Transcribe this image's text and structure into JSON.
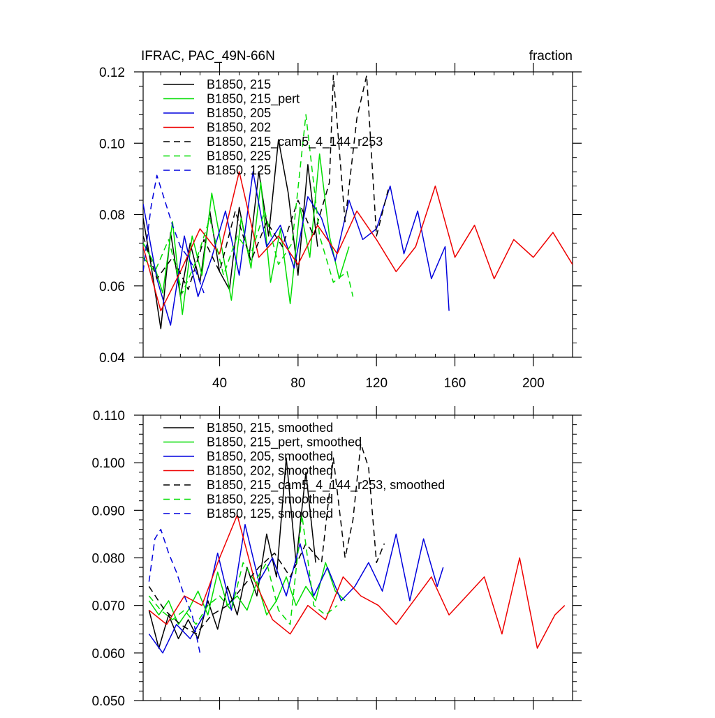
{
  "chart_data": [
    {
      "type": "line",
      "title": "IFRAC, PAC_49N-66N",
      "units": "fraction",
      "xlim": [
        1,
        220
      ],
      "ylim": [
        0.04,
        0.12
      ],
      "x_ticks": [
        40,
        80,
        120,
        160,
        200
      ],
      "y_ticks": [
        0.04,
        0.06,
        0.08,
        0.1,
        0.12
      ],
      "y_tick_labels": [
        "0.04",
        "0.06",
        "0.08",
        "0.10",
        "0.12"
      ],
      "legend_placement": "top-left",
      "series": [
        {
          "name": "B1850, 215",
          "color": "#000000",
          "dash": "solid",
          "x": [
            1,
            5,
            10,
            15,
            20,
            25,
            30,
            35,
            40,
            45,
            50,
            55,
            60,
            65,
            70,
            75,
            80,
            85,
            90
          ],
          "y": [
            0.079,
            0.066,
            0.048,
            0.075,
            0.057,
            0.072,
            0.061,
            0.081,
            0.064,
            0.059,
            0.082,
            0.068,
            0.092,
            0.074,
            0.101,
            0.086,
            0.063,
            0.094,
            0.071
          ]
        },
        {
          "name": "B1850, 215_pert",
          "color": "#00dd00",
          "dash": "solid",
          "x": [
            1,
            6,
            11,
            16,
            21,
            26,
            31,
            36,
            41,
            46,
            51,
            56,
            61,
            66,
            71,
            76,
            81,
            86,
            91,
            96,
            101,
            106
          ],
          "y": [
            0.072,
            0.067,
            0.058,
            0.078,
            0.052,
            0.074,
            0.063,
            0.086,
            0.071,
            0.056,
            0.079,
            0.065,
            0.089,
            0.061,
            0.076,
            0.055,
            0.082,
            0.068,
            0.097,
            0.074,
            0.062,
            0.071
          ]
        },
        {
          "name": "B1850, 205",
          "color": "#0000dd",
          "dash": "solid",
          "x": [
            1,
            8,
            15,
            22,
            29,
            36,
            43,
            50,
            57,
            64,
            71,
            78,
            85,
            92,
            99,
            106,
            113,
            120,
            127,
            134,
            141,
            148,
            155,
            157
          ],
          "y": [
            0.083,
            0.062,
            0.049,
            0.074,
            0.057,
            0.068,
            0.081,
            0.063,
            0.092,
            0.071,
            0.077,
            0.065,
            0.085,
            0.079,
            0.067,
            0.084,
            0.073,
            0.076,
            0.088,
            0.069,
            0.081,
            0.062,
            0.071,
            0.053
          ]
        },
        {
          "name": "B1850, 202",
          "color": "#ee0000",
          "dash": "solid",
          "x": [
            1,
            10,
            20,
            30,
            40,
            50,
            60,
            70,
            80,
            90,
            100,
            110,
            120,
            130,
            140,
            150,
            160,
            170,
            180,
            190,
            200,
            210,
            220
          ],
          "y": [
            0.071,
            0.053,
            0.064,
            0.076,
            0.069,
            0.092,
            0.068,
            0.074,
            0.066,
            0.077,
            0.069,
            0.081,
            0.073,
            0.064,
            0.071,
            0.088,
            0.068,
            0.077,
            0.062,
            0.073,
            0.068,
            0.075,
            0.066
          ]
        },
        {
          "name": "B1850, 215_cam5_4_144_r253",
          "color": "#000000",
          "dash": "dashed",
          "x": [
            1,
            8,
            16,
            24,
            32,
            40,
            48,
            56,
            64,
            72,
            80,
            88,
            96,
            98,
            104,
            110,
            115,
            120,
            126
          ],
          "y": [
            0.074,
            0.062,
            0.068,
            0.059,
            0.073,
            0.064,
            0.081,
            0.067,
            0.078,
            0.071,
            0.084,
            0.074,
            0.089,
            0.119,
            0.078,
            0.107,
            0.119,
            0.074,
            0.087
          ]
        },
        {
          "name": "B1850, 225",
          "color": "#00dd00",
          "dash": "dashed",
          "x": [
            1,
            7,
            14,
            21,
            28,
            35,
            42,
            49,
            56,
            63,
            70,
            77,
            84,
            91,
            98,
            105,
            108
          ],
          "y": [
            0.068,
            0.064,
            0.073,
            0.058,
            0.067,
            0.079,
            0.063,
            0.074,
            0.069,
            0.081,
            0.066,
            0.072,
            0.108,
            0.074,
            0.061,
            0.064,
            0.057
          ]
        },
        {
          "name": "B1850, 125",
          "color": "#0000dd",
          "dash": "dashed",
          "x": [
            1,
            5,
            8,
            12,
            16,
            20,
            24,
            28,
            32
          ],
          "y": [
            0.064,
            0.082,
            0.091,
            0.084,
            0.077,
            0.071,
            0.068,
            0.064,
            0.058
          ]
        }
      ]
    },
    {
      "type": "line",
      "xlim": [
        1,
        220
      ],
      "ylim": [
        0.05,
        0.11
      ],
      "x_ticks": [
        40,
        80,
        120,
        160,
        200
      ],
      "y_ticks": [
        0.05,
        0.06,
        0.07,
        0.08,
        0.09,
        0.1,
        0.11
      ],
      "y_tick_labels": [
        "0.050",
        "0.060",
        "0.070",
        "0.080",
        "0.090",
        "0.100",
        "0.110"
      ],
      "legend_placement": "top-left",
      "series": [
        {
          "name": "B1850, 215, smoothed",
          "color": "#000000",
          "dash": "solid",
          "x": [
            4,
            9,
            14,
            19,
            24,
            29,
            34,
            39,
            44,
            49,
            54,
            59,
            64,
            69,
            74,
            79,
            84,
            89
          ],
          "y": [
            0.069,
            0.061,
            0.068,
            0.063,
            0.067,
            0.063,
            0.071,
            0.065,
            0.074,
            0.068,
            0.078,
            0.072,
            0.085,
            0.076,
            0.101,
            0.079,
            0.098,
            0.079
          ]
        },
        {
          "name": "B1850, 215_pert, smoothed",
          "color": "#00dd00",
          "dash": "solid",
          "x": [
            4,
            9,
            14,
            19,
            24,
            29,
            34,
            39,
            44,
            49,
            54,
            59,
            64,
            69,
            74,
            79,
            84,
            89,
            94,
            99,
            104
          ],
          "y": [
            0.071,
            0.068,
            0.071,
            0.066,
            0.069,
            0.073,
            0.068,
            0.077,
            0.07,
            0.072,
            0.069,
            0.075,
            0.068,
            0.071,
            0.076,
            0.07,
            0.074,
            0.071,
            0.079,
            0.073,
            0.071
          ]
        },
        {
          "name": "B1850, 205, smoothed",
          "color": "#0000dd",
          "dash": "solid",
          "x": [
            4,
            11,
            18,
            25,
            32,
            39,
            46,
            53,
            60,
            67,
            74,
            81,
            88,
            95,
            102,
            109,
            116,
            123,
            130,
            137,
            144,
            151,
            154
          ],
          "y": [
            0.064,
            0.06,
            0.066,
            0.063,
            0.068,
            0.081,
            0.069,
            0.087,
            0.075,
            0.08,
            0.072,
            0.083,
            0.072,
            0.078,
            0.071,
            0.074,
            0.079,
            0.073,
            0.085,
            0.071,
            0.084,
            0.074,
            0.078
          ]
        },
        {
          "name": "B1850, 202, smoothed",
          "color": "#ee0000",
          "dash": "solid",
          "x": [
            4,
            13,
            22,
            31,
            40,
            49,
            58,
            67,
            76,
            85,
            94,
            103,
            112,
            121,
            130,
            139,
            148,
            157,
            166,
            175,
            184,
            193,
            202,
            211,
            216
          ],
          "y": [
            0.069,
            0.066,
            0.072,
            0.07,
            0.08,
            0.089,
            0.075,
            0.067,
            0.064,
            0.07,
            0.067,
            0.076,
            0.072,
            0.07,
            0.066,
            0.071,
            0.076,
            0.068,
            0.072,
            0.076,
            0.064,
            0.08,
            0.061,
            0.068,
            0.07
          ]
        },
        {
          "name": "B1850, 215_cam5_4_144_r253, smoothed",
          "color": "#000000",
          "dash": "dashed",
          "x": [
            4,
            12,
            20,
            28,
            36,
            44,
            52,
            60,
            68,
            76,
            84,
            92,
            98,
            104,
            108,
            112,
            116,
            120,
            124
          ],
          "y": [
            0.074,
            0.069,
            0.066,
            0.064,
            0.068,
            0.07,
            0.074,
            0.078,
            0.081,
            0.076,
            0.083,
            0.079,
            0.101,
            0.08,
            0.088,
            0.104,
            0.099,
            0.079,
            0.083
          ]
        },
        {
          "name": "B1850, 225, smoothed",
          "color": "#00dd00",
          "dash": "dashed",
          "x": [
            4,
            10,
            16,
            22,
            28,
            34,
            40,
            46,
            52,
            58,
            64,
            70,
            76,
            82,
            88,
            94,
            100
          ],
          "y": [
            0.072,
            0.069,
            0.067,
            0.069,
            0.066,
            0.07,
            0.072,
            0.069,
            0.079,
            0.075,
            0.079,
            0.069,
            0.066,
            0.089,
            0.07,
            0.068,
            0.07
          ]
        },
        {
          "name": "B1850, 125, smoothed",
          "color": "#0000dd",
          "dash": "dashed",
          "x": [
            4,
            7,
            10,
            14,
            18,
            22,
            26,
            30
          ],
          "y": [
            0.075,
            0.084,
            0.086,
            0.081,
            0.077,
            0.072,
            0.068,
            0.06
          ]
        }
      ]
    }
  ]
}
